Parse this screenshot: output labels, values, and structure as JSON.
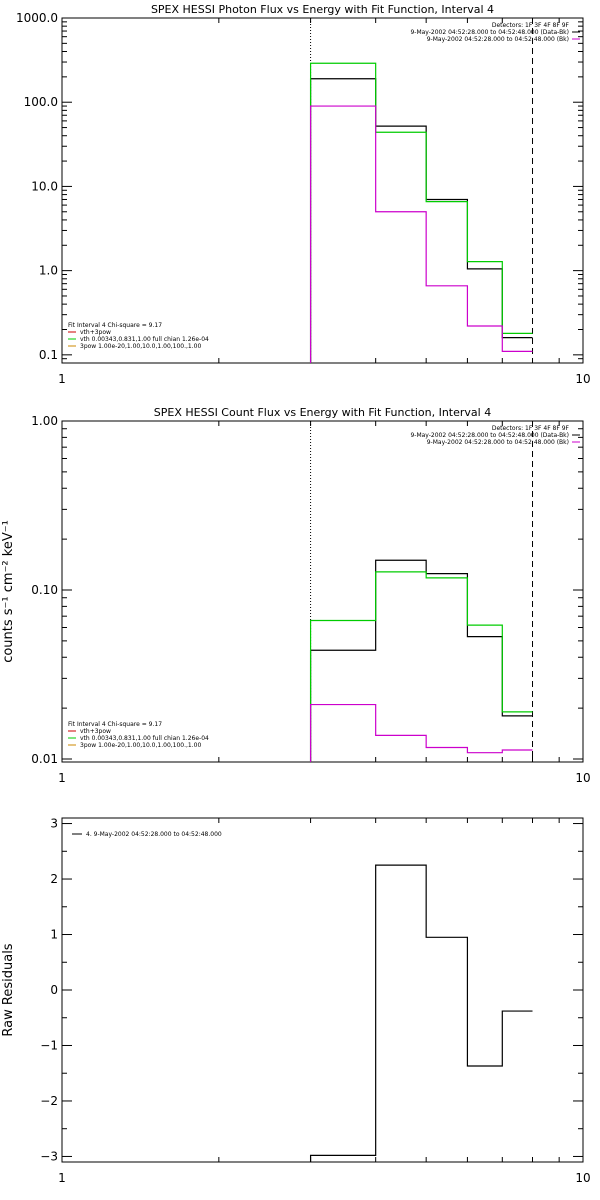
{
  "chart_data": [
    {
      "type": "line",
      "title": "SPEX HESSI Photon Flux vs Energy with Fit Function, Interval 4",
      "xlabel": "",
      "ylabel": "",
      "xscale": "log",
      "yscale": "log",
      "xlim": [
        1,
        10
      ],
      "ylim": [
        0.08,
        1000
      ],
      "x_ticks": [
        "1",
        "10"
      ],
      "y_ticks": [
        {
          "v": 1000,
          "label": "1000.0"
        },
        {
          "v": 100,
          "label": "100.0"
        },
        {
          "v": 10,
          "label": "10.0"
        },
        {
          "v": 1,
          "label": "1.0"
        },
        {
          "v": 0.1,
          "label": "0.1"
        }
      ],
      "bin_edges": [
        3,
        4,
        5,
        6,
        7,
        8
      ],
      "series": [
        {
          "color": "#000000",
          "values": [
            190,
            52,
            7.0,
            1.05,
            0.16
          ]
        },
        {
          "color": "#00cc00",
          "values": [
            290,
            44,
            6.6,
            1.28,
            0.18
          ]
        },
        {
          "color": "#cc00cc",
          "values": [
            90,
            5.0,
            0.66,
            0.22,
            0.11
          ]
        }
      ],
      "vlines": [
        {
          "x": 3,
          "style": "dotted"
        },
        {
          "x": 8,
          "style": "dashed"
        }
      ],
      "header": [
        {
          "text": "Detectors: 1F 3F 4F 8F 9F",
          "color": "#000000"
        },
        {
          "text": "9-May-2002 04:52:28.000 to 04:52:48.000 (Data-Bk)",
          "color": "#000000"
        },
        {
          "text": "9-May-2002 04:52:28.000 to 04:52:48.000 (Bk)",
          "color": "#cc00cc"
        }
      ],
      "legend_title": "Fit Interval  4    Chi-square = 9.17",
      "legend": [
        {
          "text": "vth+3pow",
          "color": "#cc0000"
        },
        {
          "text": "vth 0.00343,0.831,1.00   full chian 1.26e-04",
          "color": "#00cc00"
        },
        {
          "text": "3pow 1.00e-20,1.00,10.0,1.00,100.,1.00",
          "color": "#cc8800"
        }
      ]
    },
    {
      "type": "line",
      "title": "SPEX HESSI Count Flux vs Energy with Fit Function, Interval 4",
      "xlabel": "",
      "ylabel": "counts s⁻¹ cm⁻² keV⁻¹",
      "xscale": "log",
      "yscale": "log",
      "xlim": [
        1,
        10
      ],
      "ylim": [
        0.0096,
        1.0
      ],
      "x_ticks": [
        "1",
        "10"
      ],
      "y_ticks": [
        {
          "v": 1.0,
          "label": "1.00"
        },
        {
          "v": 0.1,
          "label": "0.10"
        },
        {
          "v": 0.01,
          "label": "0.01"
        }
      ],
      "bin_edges": [
        3,
        4,
        5,
        6,
        7,
        8
      ],
      "series": [
        {
          "color": "#000000",
          "values": [
            0.044,
            0.15,
            0.125,
            0.053,
            0.018
          ]
        },
        {
          "color": "#00cc00",
          "values": [
            0.066,
            0.128,
            0.118,
            0.062,
            0.019
          ]
        },
        {
          "color": "#cc00cc",
          "values": [
            0.021,
            0.0138,
            0.0117,
            0.0109,
            0.0113
          ]
        }
      ],
      "vlines": [
        {
          "x": 3,
          "style": "dotted"
        },
        {
          "x": 8,
          "style": "dashed"
        }
      ],
      "header": [
        {
          "text": "Detectors: 1F 3F 4F 8F 9F",
          "color": "#000000"
        },
        {
          "text": "9-May-2002 04:52:28.000 to 04:52:48.000 (Data-Bk)",
          "color": "#000000"
        },
        {
          "text": "9-May-2002 04:52:28.000 to 04:52:48.000 (Bk)",
          "color": "#cc00cc"
        }
      ],
      "legend_title": "Fit Interval  4    Chi-square = 9.17",
      "legend": [
        {
          "text": "vth+3pow",
          "color": "#cc0000"
        },
        {
          "text": "vth 0.00343,0.831,1.00   full chian 1.26e-04",
          "color": "#00cc00"
        },
        {
          "text": "3pow 1.00e-20,1.00,10.0,1.00,100.,1.00",
          "color": "#cc8800"
        }
      ]
    },
    {
      "type": "line",
      "title": "",
      "xlabel": "",
      "ylabel": "Raw Residuals",
      "xscale": "log",
      "yscale": "linear",
      "xlim": [
        1,
        10
      ],
      "ylim": [
        -3.1,
        3.1
      ],
      "x_ticks": [
        "1",
        "10"
      ],
      "y_ticks": [
        {
          "v": 3,
          "label": "3"
        },
        {
          "v": 2,
          "label": "2"
        },
        {
          "v": 1,
          "label": "1"
        },
        {
          "v": 0,
          "label": "0"
        },
        {
          "v": -1,
          "label": "−1"
        },
        {
          "v": -2,
          "label": "−2"
        },
        {
          "v": -3,
          "label": "−3"
        }
      ],
      "bin_edges": [
        3,
        4,
        5,
        6,
        7,
        8
      ],
      "series": [
        {
          "color": "#000000",
          "values": [
            -2.98,
            2.25,
            0.95,
            -1.37,
            -0.38
          ]
        }
      ],
      "vlines": [],
      "header": [],
      "legend_title": "",
      "legend": [
        {
          "text": "4.  9-May-2002 04:52:28.000 to 04:52:48.000",
          "color": "#000000"
        }
      ]
    }
  ]
}
